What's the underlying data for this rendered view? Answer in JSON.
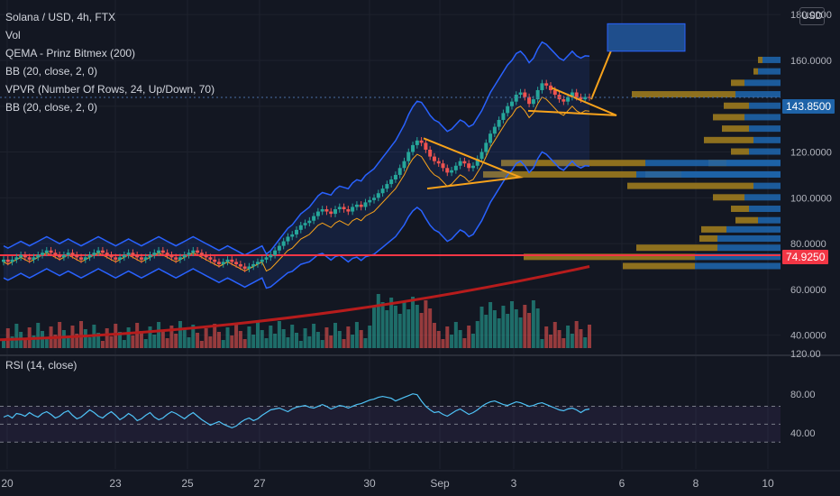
{
  "legend": {
    "title": "Solana / USD, 4h, FTX",
    "indicators": [
      "Vol",
      "QEMA - Prinz Bitmex (200)",
      "BB (20, close, 2, 0)",
      "VPVR (Number Of Rows, 24, Up/Down, 70)",
      "BB (20, close, 2, 0)"
    ]
  },
  "rsi_label": "RSI (14, close)",
  "currency_button": "USD",
  "price_tags": {
    "last": "143.8500",
    "level": "74.9250"
  },
  "colors": {
    "up": "#26a69a",
    "down": "#ef5350",
    "bb": "#2962ff",
    "basis": "#f7a21b",
    "ema": "#b71c1c",
    "hline": "#f23645",
    "rsi": "#4fc3f7",
    "drawing": "#f7a21b",
    "target": "#1f4e8c",
    "vpUp": "#1e63a8",
    "vpDown": "#9c7a1e"
  },
  "chart_data": [
    {
      "type": "candlestick",
      "symbol": "Solana / USD, 4h, FTX",
      "y_ticks": [
        "180.0000",
        "160.0000",
        "140.0000",
        "120.0000",
        "100.0000",
        "80.0000",
        "60.0000",
        "40.0000"
      ],
      "ylim": [
        32,
        184
      ],
      "x_ticks": [
        "20",
        "23",
        "25",
        "27",
        "30",
        "Sep",
        "3",
        "6",
        "8",
        "10"
      ],
      "closes": [
        73,
        72,
        73,
        74,
        75,
        74,
        73,
        74,
        75,
        76,
        77,
        76,
        75,
        74,
        75,
        76,
        75,
        74,
        73,
        74,
        75,
        76,
        77,
        76,
        75,
        74,
        73,
        74,
        75,
        76,
        75,
        74,
        73,
        74,
        75,
        76,
        77,
        76,
        75,
        74,
        73,
        74,
        75,
        76,
        77,
        76,
        75,
        74,
        73,
        72,
        71,
        72,
        73,
        72,
        71,
        70,
        69,
        70,
        71,
        72,
        73,
        74,
        75,
        77,
        79,
        81,
        83,
        84,
        86,
        88,
        89,
        90,
        92,
        94,
        95,
        94,
        93,
        95,
        96,
        95,
        94,
        96,
        97,
        96,
        98,
        99,
        100,
        102,
        104,
        106,
        108,
        110,
        113,
        116,
        120,
        123,
        125,
        124,
        121,
        118,
        116,
        115,
        113,
        111,
        112,
        114,
        116,
        115,
        113,
        114,
        117,
        120,
        124,
        128,
        131,
        134,
        137,
        140,
        142,
        145,
        146,
        144,
        141,
        143,
        147,
        150,
        149,
        147,
        145,
        143,
        142,
        144,
        146,
        144,
        143,
        144,
        143.85
      ],
      "bb_upper_end": 158,
      "bb_lower_end": 110,
      "bb_basis_end": 134,
      "last_price": 143.85,
      "hline_price": 74.925,
      "ema200": [
        [
          0,
          68
        ],
        [
          1,
          70
        ]
      ],
      "annotations": [
        {
          "name": "triangle-1",
          "from": [
            470,
            126
          ],
          "apex": [
            577,
            109
          ],
          "to": [
            474,
            104
          ]
        },
        {
          "name": "triangle-2",
          "from": [
            586,
            138
          ],
          "apex": [
            684,
            136
          ],
          "to": [
            612,
            148
          ]
        },
        {
          "name": "projection",
          "from": [
            656,
            143
          ],
          "to": [
            686,
            172
          ]
        },
        {
          "name": "target-box",
          "x1": 674,
          "x2": 760,
          "y1": 164,
          "y2": 176
        }
      ]
    },
    {
      "type": "line",
      "name": "RSI (14, close)",
      "y_ticks": [
        "120.00",
        "80.00",
        "40.00"
      ],
      "bands": [
        70,
        50,
        30
      ],
      "values": [
        58,
        60,
        57,
        62,
        61,
        59,
        63,
        60,
        58,
        62,
        64,
        61,
        57,
        59,
        63,
        65,
        60,
        56,
        58,
        62,
        66,
        63,
        59,
        57,
        61,
        64,
        60,
        55,
        58,
        62,
        59,
        54,
        56,
        60,
        63,
        58,
        55,
        57,
        61,
        64,
        62,
        59,
        56,
        60,
        63,
        59,
        55,
        52,
        49,
        51,
        53,
        50,
        48,
        46,
        48,
        52,
        55,
        57,
        54,
        56,
        60,
        63,
        66,
        67,
        68,
        66,
        64,
        67,
        69,
        70,
        71,
        69,
        68,
        70,
        72,
        70,
        67,
        69,
        71,
        70,
        68,
        70,
        72,
        73,
        75,
        77,
        78,
        80,
        81,
        80,
        79,
        76,
        78,
        80,
        82,
        84,
        83,
        76,
        70,
        66,
        63,
        64,
        61,
        59,
        62,
        65,
        67,
        64,
        61,
        63,
        66,
        70,
        73,
        75,
        76,
        74,
        72,
        71,
        73,
        75,
        74,
        72,
        70,
        71,
        73,
        74,
        72,
        70,
        68,
        66,
        65,
        67,
        68,
        66,
        63,
        66,
        67
      ]
    }
  ]
}
